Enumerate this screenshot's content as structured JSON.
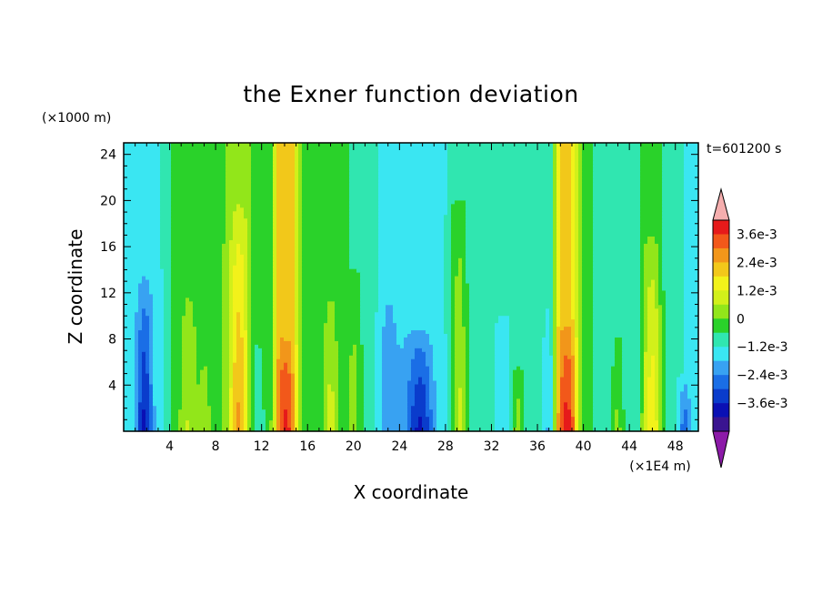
{
  "chart_data": {
    "type": "heatmap",
    "title": "the Exner function deviation",
    "xlabel": "X coordinate",
    "ylabel": "Z coordinate",
    "x_unit": "(×1E4 m)",
    "y_unit": "(×1000 m)",
    "time_label": "t=601200 s",
    "xlim": [
      0,
      50
    ],
    "ylim": [
      0,
      25
    ],
    "x_ticks": [
      4,
      8,
      12,
      16,
      20,
      24,
      28,
      32,
      36,
      40,
      44,
      48
    ],
    "y_ticks": [
      4,
      8,
      12,
      16,
      20,
      24
    ],
    "colorbar": {
      "levels": [
        -0.0042,
        -0.0036,
        -0.003,
        -0.0024,
        -0.0018,
        -0.0012,
        -0.0006,
        0,
        0.0006,
        0.0012,
        0.0018,
        0.0024,
        0.003,
        0.0036,
        0.0042
      ],
      "tick_labels": [
        "3.6e-3",
        "2.4e-3",
        "1.2e-3",
        "0",
        "−1.2e-3",
        "−2.4e-3",
        "−3.6e-3"
      ],
      "colors": [
        "#8c1aa8",
        "#3a1490",
        "#0a10b4",
        "#0a3ccc",
        "#1a6ee6",
        "#38a2f2",
        "#3ae6f2",
        "#30e6b0",
        "#2ad22a",
        "#92e61a",
        "#d2f01a",
        "#f2f21a",
        "#f2c81a",
        "#f2961a",
        "#f2581a",
        "#e61a1a",
        "#f5aeae"
      ]
    },
    "columns": [
      {
        "x": 0.5,
        "base": -0.0008,
        "amp": 0.0,
        "h": 25,
        "w": 1.4
      },
      {
        "x": 1.8,
        "base": -0.0008,
        "amp": -0.0024,
        "h": 14,
        "w": 0.7
      },
      {
        "x": 3.0,
        "base": -0.0008,
        "amp": 0.0,
        "h": 25,
        "w": 0.8
      },
      {
        "x": 4.5,
        "base": 0.0001,
        "amp": 0.0,
        "h": 25,
        "w": 1.0
      },
      {
        "x": 5.6,
        "base": 0.0003,
        "amp": 0.001,
        "h": 14,
        "w": 0.8
      },
      {
        "x": 7.0,
        "base": 0.0,
        "amp": 0.0008,
        "h": 10,
        "w": 0.5
      },
      {
        "x": 8.2,
        "base": 0.0005,
        "amp": 0.0,
        "h": 25,
        "w": 1.0
      },
      {
        "x": 10.0,
        "base": 0.001,
        "amp": 0.0022,
        "h": 20,
        "w": 0.8
      },
      {
        "x": 11.6,
        "base": 0.0003,
        "amp": -0.0008,
        "h": 10,
        "w": 0.6
      },
      {
        "x": 12.6,
        "base": 0.0002,
        "amp": 0.0,
        "h": 25,
        "w": 0.5
      },
      {
        "x": 14.2,
        "base": 0.003,
        "amp": 0.0015,
        "h": 8,
        "w": 0.9
      },
      {
        "x": 16.0,
        "base": 0.0002,
        "amp": 0.0,
        "h": 25,
        "w": 1.0
      },
      {
        "x": 18.0,
        "base": 0.0001,
        "amp": 0.0014,
        "h": 14,
        "w": 0.7
      },
      {
        "x": 20.0,
        "base": 0.0,
        "amp": 0.001,
        "h": 14,
        "w": 0.6
      },
      {
        "x": 21.4,
        "base": -0.0002,
        "amp": 0.0,
        "h": 25,
        "w": 0.8
      },
      {
        "x": 23.0,
        "base": -0.0009,
        "amp": -0.0008,
        "h": 14,
        "w": 1.0
      },
      {
        "x": 25.8,
        "base": -0.001,
        "amp": -0.0022,
        "h": 9,
        "w": 1.2
      },
      {
        "x": 27.2,
        "base": -0.0006,
        "amp": 0.0,
        "h": 25,
        "w": 0.8
      },
      {
        "x": 29.2,
        "base": 0.0,
        "amp": 0.0014,
        "h": 20,
        "w": 0.6
      },
      {
        "x": 31.0,
        "base": -0.0004,
        "amp": 0.0,
        "h": 25,
        "w": 0.9
      },
      {
        "x": 33.0,
        "base": -0.0006,
        "amp": -0.0004,
        "h": 10,
        "w": 0.6
      },
      {
        "x": 34.3,
        "base": -0.0002,
        "amp": 0.0012,
        "h": 6,
        "w": 0.5
      },
      {
        "x": 36.0,
        "base": -0.0004,
        "amp": 0.0,
        "h": 25,
        "w": 0.6
      },
      {
        "x": 37.0,
        "base": -0.0004,
        "amp": -0.001,
        "h": 12,
        "w": 0.5
      },
      {
        "x": 38.6,
        "base": 0.0026,
        "amp": 0.002,
        "h": 10,
        "w": 0.9
      },
      {
        "x": 40.2,
        "base": 0.0001,
        "amp": 0.0,
        "h": 25,
        "w": 0.8
      },
      {
        "x": 41.8,
        "base": -0.0003,
        "amp": 0.0,
        "h": 25,
        "w": 0.9
      },
      {
        "x": 43.0,
        "base": -0.0002,
        "amp": 0.001,
        "h": 9,
        "w": 0.5
      },
      {
        "x": 44.2,
        "base": -0.0004,
        "amp": 0.0,
        "h": 25,
        "w": 0.7
      },
      {
        "x": 46.0,
        "base": 0.0005,
        "amp": 0.0018,
        "h": 17,
        "w": 0.8
      },
      {
        "x": 47.5,
        "base": -0.0004,
        "amp": 0.0,
        "h": 25,
        "w": 0.8
      },
      {
        "x": 48.8,
        "base": -0.0006,
        "amp": -0.0016,
        "h": 5,
        "w": 0.5
      },
      {
        "x": 49.8,
        "base": -0.0008,
        "amp": 0.0,
        "h": 25,
        "w": 0.6
      }
    ]
  }
}
